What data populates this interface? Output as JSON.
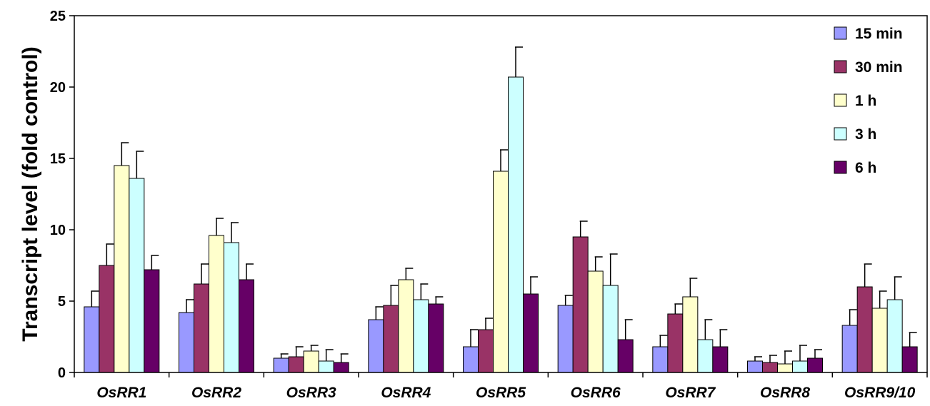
{
  "chart_data": {
    "type": "bar",
    "title": "",
    "xlabel": "",
    "ylabel": "Transcript level (fold control)",
    "ylim": [
      0,
      25
    ],
    "yticks": [
      0,
      5,
      10,
      15,
      20,
      25
    ],
    "grid": false,
    "legend_position": "top-right",
    "categories": [
      "OsRR1",
      "OsRR2",
      "OsRR3",
      "OsRR4",
      "OsRR5",
      "OsRR6",
      "OsRR7",
      "OsRR8",
      "OsRR9/10"
    ],
    "series": [
      {
        "name": "15 min",
        "color": "#9999ff",
        "values": [
          4.6,
          4.2,
          1.0,
          3.7,
          1.8,
          4.7,
          1.8,
          0.8,
          3.3
        ],
        "errors": [
          1.1,
          0.9,
          0.3,
          0.9,
          1.2,
          0.7,
          0.8,
          0.3,
          1.1
        ]
      },
      {
        "name": "30 min",
        "color": "#993366",
        "values": [
          7.5,
          6.2,
          1.1,
          4.7,
          3.0,
          9.5,
          4.1,
          0.7,
          6.0
        ],
        "errors": [
          1.5,
          1.4,
          0.7,
          1.4,
          0.8,
          1.1,
          0.7,
          0.5,
          1.6
        ]
      },
      {
        "name": "1 h",
        "color": "#ffffcc",
        "values": [
          14.5,
          9.6,
          1.5,
          6.5,
          14.1,
          7.1,
          5.3,
          0.6,
          4.5
        ],
        "errors": [
          1.6,
          1.2,
          0.4,
          0.8,
          1.5,
          1.0,
          1.3,
          0.9,
          1.2
        ]
      },
      {
        "name": "3 h",
        "color": "#ccffff",
        "values": [
          13.6,
          9.1,
          0.8,
          5.1,
          20.7,
          6.1,
          2.3,
          0.8,
          5.1
        ],
        "errors": [
          1.9,
          1.4,
          0.8,
          1.1,
          2.1,
          2.2,
          1.4,
          1.1,
          1.6
        ]
      },
      {
        "name": "6 h",
        "color": "#660066",
        "values": [
          7.2,
          6.5,
          0.7,
          4.8,
          5.5,
          2.3,
          1.8,
          1.0,
          1.8
        ],
        "errors": [
          1.0,
          1.1,
          0.6,
          0.5,
          1.2,
          1.4,
          1.2,
          0.6,
          1.0
        ]
      }
    ]
  }
}
